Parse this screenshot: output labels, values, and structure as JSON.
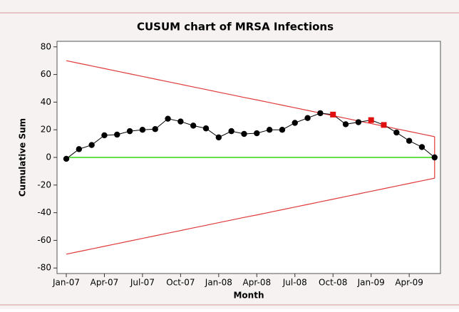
{
  "chart_data": {
    "type": "cusum",
    "title": "CUSUM chart of MRSA Infections",
    "xlabel": "Month",
    "ylabel": "Cumulative Sum",
    "categories": [
      "Jan-07",
      null,
      null,
      "Apr-07",
      null,
      null,
      "Jul-07",
      null,
      null,
      "Oct-07",
      null,
      null,
      "Jan-08",
      null,
      null,
      "Apr-08",
      null,
      null,
      "Jul-08",
      null,
      null,
      "Oct-08",
      null,
      null,
      "Jan-09",
      null,
      null,
      "Apr-09",
      null,
      null
    ],
    "values": [
      -1,
      6,
      9,
      16,
      16.5,
      19,
      20,
      20.5,
      28,
      26,
      23,
      21,
      14.5,
      19,
      17,
      17.5,
      20,
      20,
      25,
      28.5,
      32,
      31,
      24,
      25.5,
      27,
      23.5,
      18,
      12,
      7.5,
      0
    ],
    "upper_limit": [
      70,
      68.1,
      66.2,
      64.3,
      62.4,
      60.5,
      58.6,
      56.7,
      54.8,
      52.9,
      51,
      49.1,
      47.2,
      45.3,
      43.4,
      41.6,
      39.7,
      37.8,
      35.9,
      34,
      32.1,
      30.2,
      28.3,
      26.4,
      24.5,
      22.6,
      20.7,
      18.8,
      16.9,
      15
    ],
    "lower_limit": [
      -70,
      -68.1,
      -66.2,
      -64.3,
      -62.4,
      -60.5,
      -58.6,
      -56.7,
      -54.8,
      -52.9,
      -51,
      -49.1,
      -47.2,
      -45.3,
      -43.4,
      -41.6,
      -39.7,
      -37.8,
      -35.9,
      -34,
      -32.1,
      -30.2,
      -28.3,
      -26.4,
      -24.5,
      -22.6,
      -20.7,
      -18.8,
      -16.9,
      -15
    ],
    "center_line": 0,
    "color": "#000000",
    "out_of_control_color": "#e01010",
    "limit_color": "#e03a3a",
    "center_color": "#66e04a",
    "ylim": [
      -84,
      84
    ],
    "yticks": [
      -80,
      -60,
      -40,
      -20,
      0,
      20,
      40,
      60,
      80
    ]
  }
}
